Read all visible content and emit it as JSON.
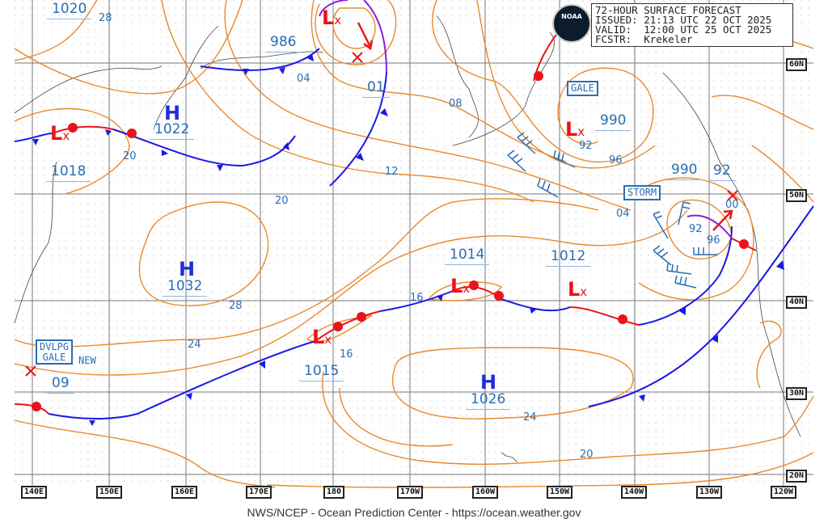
{
  "header": {
    "title": "72-HOUR SURFACE FORECAST",
    "issued": "ISSUED: 21:13 UTC 22 OCT 2025",
    "valid": "VALID:  12:00 UTC 25 OCT 2025",
    "forecaster": "FCSTR:  Krekeler",
    "logo": "NOAA"
  },
  "longitudes": [
    "140E",
    "150E",
    "160E",
    "170E",
    "180",
    "170W",
    "160W",
    "150W",
    "140W",
    "130W",
    "120W"
  ],
  "latitudes": [
    "60N",
    "50N",
    "40N",
    "30N",
    "20N"
  ],
  "highs": [
    {
      "symbol": "H",
      "pressure": "1022"
    },
    {
      "symbol": "H",
      "pressure": "1032"
    },
    {
      "symbol": "H",
      "pressure": "1026"
    }
  ],
  "lows": [
    {
      "symbol": "L",
      "pressure": "986"
    },
    {
      "symbol": "L",
      "pressure": "1018"
    },
    {
      "symbol": "L",
      "pressure": "990"
    },
    {
      "symbol": "L",
      "pressure": "1014"
    },
    {
      "symbol": "L",
      "pressure": "1012"
    },
    {
      "symbol": "L",
      "pressure": "1015"
    }
  ],
  "other_pressures": [
    "1020",
    "01",
    "990",
    "92",
    "09"
  ],
  "isobar_labels": [
    "28",
    "04",
    "08",
    "12",
    "20",
    "20",
    "92",
    "96",
    "04",
    "92",
    "96",
    "00",
    "28",
    "24",
    "16",
    "16",
    "24",
    "20"
  ],
  "warnings": {
    "gale": "GALE",
    "storm": "STORM",
    "dvlpg_line1": "DVLPG",
    "dvlpg_line2": "GALE",
    "new": "NEW"
  },
  "colors": {
    "isobar": "#e8892b",
    "cold_front": "#1a1ae6",
    "warm_front": "#e8141a",
    "occluded_front": "#8a1ee0",
    "label": "#2a6db5"
  },
  "footer": "NWS/NCEP - Ocean Prediction Center - https://ocean.weather.gov"
}
